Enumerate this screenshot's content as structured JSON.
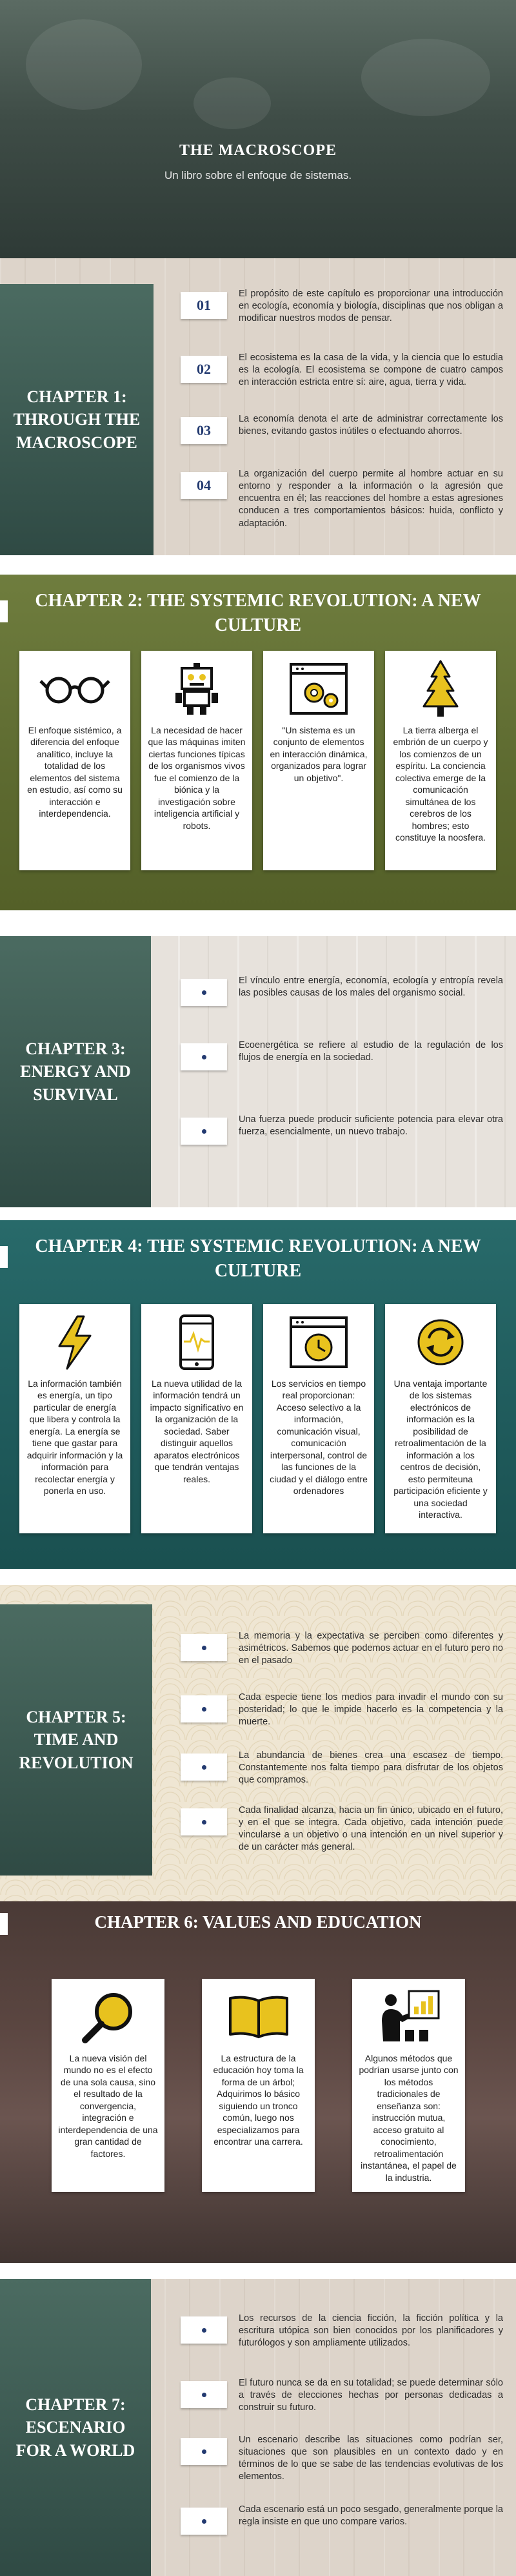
{
  "hero": {
    "title": "THE MACROSCOPE",
    "subtitle": "Un libro sobre el enfoque de sistemas."
  },
  "chapter1": {
    "title": "CHAPTER 1: THROUGH THE MACROSCOPE",
    "items": [
      {
        "num": "01",
        "text": "El propósito de este capítulo es proporcionar una introducción en ecología, economía y biología, disciplinas que nos obligan a modificar nuestros modos de pensar."
      },
      {
        "num": "02",
        "text": "El ecosistema es la casa de la vida, y la ciencia que lo estudia es la ecología. El ecosistema se compone de cuatro campos en interacción estricta entre sí: aire, agua, tierra y vida."
      },
      {
        "num": "03",
        "text": "La economía denota el arte de administrar correctamente los bienes, evitando gastos inútiles o efectuando ahorros."
      },
      {
        "num": "04",
        "text": "La organización del cuerpo permite al hombre actuar en su entorno y responder a la información o la agresión que encuentra en él; las reacciones del hombre a estas agresiones conducen a tres comportamientos básicos: huida, conflicto y adaptación."
      }
    ]
  },
  "chapter2": {
    "title": "CHAPTER 2: THE SYSTEMIC REVOLUTION: A NEW CULTURE",
    "cards": [
      {
        "icon": "glasses-icon",
        "text": "El enfoque sistémico, a diferencia del enfoque analítico, incluye la totalidad de los elementos del sistema en estudio, así como su interacción e interdependencia."
      },
      {
        "icon": "robot-icon",
        "text": "La necesidad de hacer que las máquinas imiten ciertas funciones típicas de los organismos vivos fue el comienzo de la biónica y la investigación sobre inteligencia artificial y robots."
      },
      {
        "icon": "gears-icon",
        "text": "\"Un sistema es un conjunto de elementos en interacción dinámica, organizados para lograr un objetivo\"."
      },
      {
        "icon": "tree-icon",
        "text": "La tierra alberga el embrión de un cuerpo y los comienzos de un espíritu. La conciencia colectiva emerge de la comunicación simultánea de los cerebros de los hombres; esto constituye la noosfera."
      }
    ]
  },
  "chapter3": {
    "title": "CHAPTER 3: ENERGY AND SURVIVAL",
    "items": [
      {
        "text": "El vínculo entre energía, economía, ecología y entropía revela las posibles causas de los males del organismo social."
      },
      {
        "text": "Ecoenergética se refiere al estudio de la regulación de los flujos de energía en la sociedad."
      },
      {
        "text": "Una fuerza puede producir suficiente potencia para elevar otra fuerza, esencialmente, un nuevo trabajo."
      }
    ]
  },
  "chapter4": {
    "title": "CHAPTER 4: THE SYSTEMIC REVOLUTION: A NEW CULTURE",
    "cards": [
      {
        "icon": "lightning-icon",
        "text": "La información también es energía, un tipo particular de energía que libera y controla la energía. La energía se tiene que gastar para adquirir información y la información para recolectar energía y ponerla en uso."
      },
      {
        "icon": "phone-pulse-icon",
        "text": "La nueva utilidad de la información tendrá un impacto significativo en la organización de la sociedad. Saber distinguir aquellos aparatos electrónicos que tendrán ventajas reales."
      },
      {
        "icon": "browser-clock-icon",
        "text": "Los servicios en tiempo real proporcionan: Acceso selectivo a la información, comunicación visual, comunicación interpersonal, control de las funciones de la ciudad y el diálogo entre ordenadores"
      },
      {
        "icon": "cycle-arrows-icon",
        "text": "Una ventaja importante de los sistemas electrónicos de información es la posibilidad de retroalimentación de la información a los centros de decisión, esto permiteuna participación eficiente y una sociedad interactiva."
      }
    ]
  },
  "chapter5": {
    "title": "CHAPTER 5: TIME AND REVOLUTION",
    "items": [
      {
        "text": "La memoria y la expectativa se perciben como diferentes y asimétricos. Sabemos que podemos actuar en el futuro pero no en el pasado"
      },
      {
        "text": "Cada especie tiene los medios para invadir el mundo con su posteridad; lo que le impide hacerlo es la competencia y la muerte."
      },
      {
        "text": "La abundancia de bienes crea una escasez de tiempo. Constantemente nos falta tiempo para disfrutar de los objetos que compramos."
      },
      {
        "text": "Cada finalidad alcanza, hacia un fin único, ubicado en el futuro, y en el que se integra. Cada objetivo, cada intención puede vincularse a un objetivo o una intención en un nivel superior y de un carácter más general."
      }
    ]
  },
  "chapter6": {
    "title": "CHAPTER 6: VALUES AND EDUCATION",
    "cards": [
      {
        "icon": "magnifier-icon",
        "text": "La nueva visión del mundo no es el efecto de una sola causa, sino el resultado de la convergencia, integración e interdependencia de una gran cantidad de factores."
      },
      {
        "icon": "book-icon",
        "text": "La estructura de la educación hoy toma la forma de un árbol; Adquirimos lo básico siguiendo un tronco común, luego nos especializamos para encontrar una carrera."
      },
      {
        "icon": "presentation-icon",
        "text": "Algunos métodos que podrían usarse junto con los métodos tradicionales de enseñanza son: instrucción mutua, acceso gratuito al conocimiento, retroalimentación instantánea, el papel de la industria."
      }
    ]
  },
  "chapter7": {
    "title": "CHAPTER 7: ESCENARIO FOR A WORLD",
    "items": [
      {
        "text": "Los recursos de la ciencia ficción, la ficción política y la escritura utópica son bien conocidos por los planificadores y futurólogos y son ampliamente utilizados."
      },
      {
        "text": "El futuro nunca se da en su totalidad; se puede determinar sólo a través de elecciones hechas por personas dedicadas a construir su futuro."
      },
      {
        "text": "Un escenario describe las situaciones como podrían ser, situaciones que son plausibles en un contexto dado y en términos de lo que se sabe de las tendencias evolutivas de los elementos."
      },
      {
        "text": "Cada escenario está un poco sesgado, generalmente porque la regla insiste en que uno compare varios."
      }
    ]
  }
}
